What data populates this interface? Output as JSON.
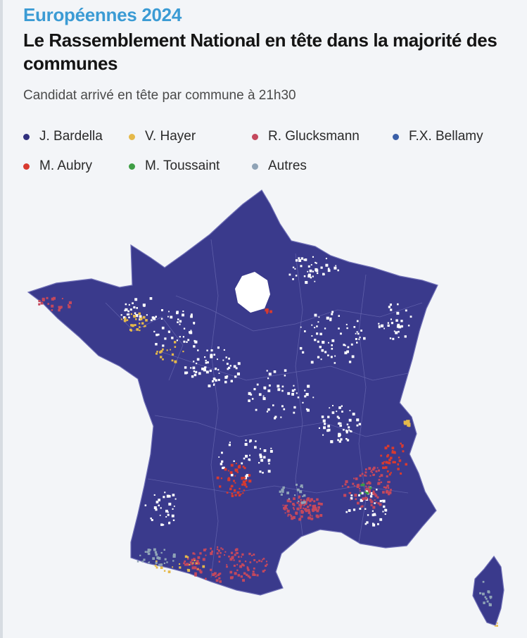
{
  "header": {
    "kicker": "Européennes 2024",
    "title": "Le Rassemblement National en tête dans la majorité des communes",
    "subtitle": "Candidat arrivé en tête par commune à 21h30"
  },
  "legend": [
    {
      "label": "J. Bardella",
      "color": "#31317f"
    },
    {
      "label": "V. Hayer",
      "color": "#e5b94a"
    },
    {
      "label": "R. Glucksmann",
      "color": "#c4485d"
    },
    {
      "label": "F.X. Bellamy",
      "color": "#3a5fa8"
    },
    {
      "label": "M. Aubry",
      "color": "#d83a2f"
    },
    {
      "label": "M. Toussaint",
      "color": "#3f9e45"
    },
    {
      "label": "Autres",
      "color": "#8fa3b6"
    }
  ],
  "map": {
    "base_color": "#3a3a8c",
    "border_color": "#6d6db5",
    "hole_color": "#ffffff"
  }
}
